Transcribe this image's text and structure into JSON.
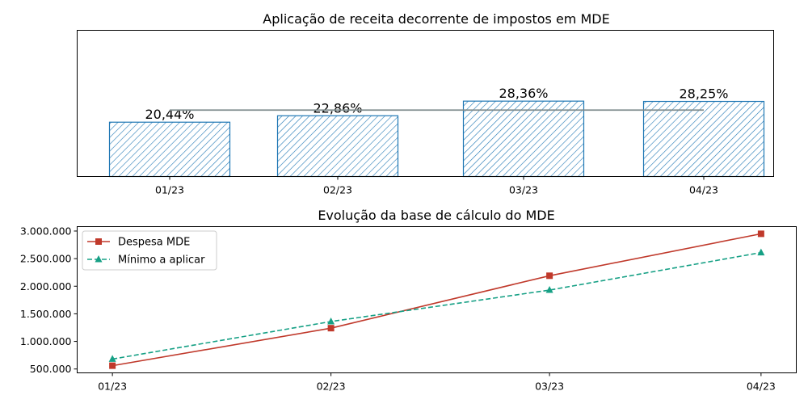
{
  "chart_data": [
    {
      "type": "bar",
      "title": "Aplicação de receita decorrente de impostos em MDE",
      "xlabel": "",
      "ylabel": "",
      "categories": [
        "01/23",
        "02/23",
        "03/23",
        "04/23"
      ],
      "values": [
        20.44,
        22.86,
        28.36,
        28.25
      ],
      "value_labels": [
        "20,44%",
        "22,86%",
        "28,36%",
        "28,25%"
      ],
      "reference_line": 25,
      "ylim": [
        0,
        55
      ],
      "y_axis_visible": false,
      "grid": false,
      "bar_style": "hatched",
      "color": "#1f77b4",
      "reference_line_color": "#7f8c8d"
    },
    {
      "type": "line",
      "title": "Evolução da base de cálculo do MDE",
      "xlabel": "",
      "ylabel": "",
      "x": [
        "01/23",
        "02/23",
        "03/23",
        "04/23"
      ],
      "x_positions": [
        1,
        32,
        63,
        93
      ],
      "xlim": [
        -4,
        98
      ],
      "ylim": [
        430000,
        3080000
      ],
      "yticks": [
        500000,
        1000000,
        1500000,
        2000000,
        2500000,
        3000000
      ],
      "ytick_labels": [
        "500.000",
        "1.000.000",
        "1.500.000",
        "2.000.000",
        "2.500.000",
        "3.000.000"
      ],
      "grid": false,
      "legend_position": "upper-left",
      "series": [
        {
          "name": "Despesa MDE",
          "values": [
            560000,
            1240000,
            2190000,
            2950000
          ],
          "color": "#c0392b",
          "marker": "square",
          "linestyle": "solid"
        },
        {
          "name": "Mínimo a aplicar",
          "values": [
            680000,
            1360000,
            1930000,
            2610000
          ],
          "color": "#16a085",
          "marker": "triangle",
          "linestyle": "dashed"
        }
      ]
    }
  ]
}
